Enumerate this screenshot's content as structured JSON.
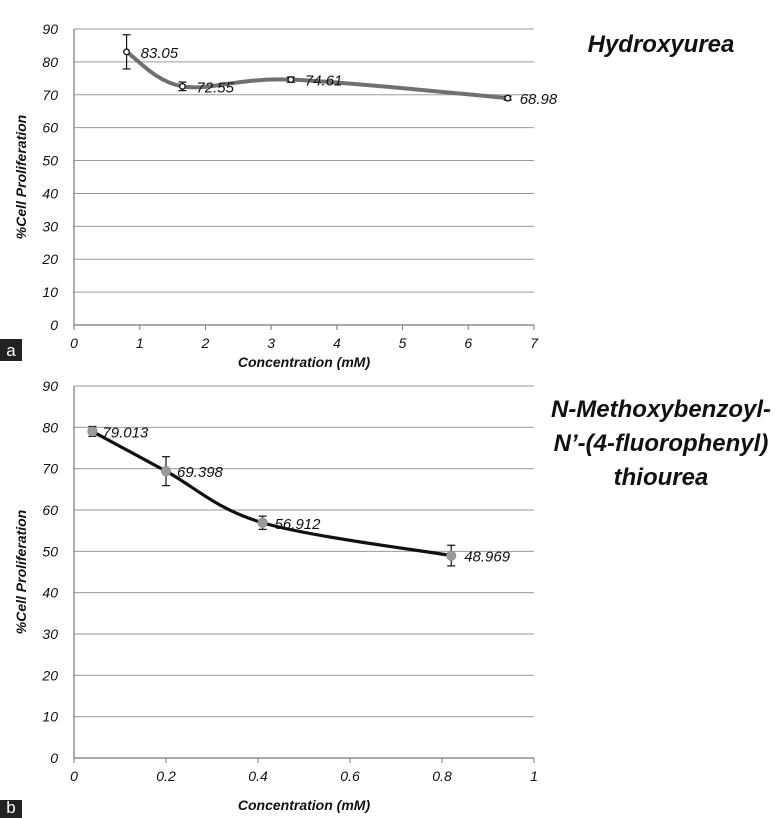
{
  "chart_data": [
    {
      "panel": "a",
      "type": "line",
      "title_lines": [
        "Hydroxyurea"
      ],
      "xlabel": "Concentration (mM)",
      "ylabel": "%Cell Proliferation",
      "xlim": [
        0,
        7
      ],
      "ylim": [
        0,
        90
      ],
      "xticks": [
        0,
        1,
        2,
        3,
        4,
        5,
        6,
        7
      ],
      "xtick_labels": [
        "0",
        "1",
        "2",
        "3",
        "4",
        "5",
        "6",
        "7"
      ],
      "yticks": [
        0,
        10,
        20,
        30,
        40,
        50,
        60,
        70,
        80,
        90
      ],
      "ytick_labels": [
        "0",
        "10",
        "20",
        "30",
        "40",
        "50",
        "60",
        "70",
        "80",
        "90"
      ],
      "grid": "horizontal",
      "smooth": true,
      "line_color": "#707070",
      "marker_style": "open",
      "points": [
        {
          "x": 0.8,
          "y": 83.05,
          "err": 5.2,
          "label": "83.05"
        },
        {
          "x": 1.65,
          "y": 72.55,
          "err": 1.3,
          "label": "72.55"
        },
        {
          "x": 3.3,
          "y": 74.61,
          "err": 0.8,
          "label": "74.61"
        },
        {
          "x": 6.6,
          "y": 68.98,
          "err": 0.6,
          "label": "68.98"
        }
      ]
    },
    {
      "panel": "b",
      "type": "line",
      "title_lines": [
        "N-Methoxybenzoyl-",
        "N’-(4-fluorophenyl)",
        "thiourea"
      ],
      "xlabel": "Concentration (mM)",
      "ylabel": "%Cell Proliferation",
      "xlim": [
        0,
        1
      ],
      "ylim": [
        0,
        90
      ],
      "xticks": [
        0,
        0.2,
        0.4,
        0.6,
        0.8,
        1
      ],
      "xtick_labels": [
        "0",
        "0.2",
        "0.4",
        "0.6",
        "0.8",
        "1"
      ],
      "yticks": [
        0,
        10,
        20,
        30,
        40,
        50,
        60,
        70,
        80,
        90
      ],
      "ytick_labels": [
        "0",
        "10",
        "20",
        "30",
        "40",
        "50",
        "60",
        "70",
        "80",
        "90"
      ],
      "grid": "horizontal",
      "smooth": true,
      "line_color": "#111111",
      "marker_color": "#9a9a9a",
      "marker_style": "filled",
      "points": [
        {
          "x": 0.04,
          "y": 79.013,
          "err": 1.2,
          "label": "79.013"
        },
        {
          "x": 0.2,
          "y": 69.398,
          "err": 3.5,
          "label": "69.398"
        },
        {
          "x": 0.41,
          "y": 56.912,
          "err": 1.6,
          "label": "56.912"
        },
        {
          "x": 0.82,
          "y": 48.969,
          "err": 2.5,
          "label": "48.969"
        }
      ]
    }
  ]
}
